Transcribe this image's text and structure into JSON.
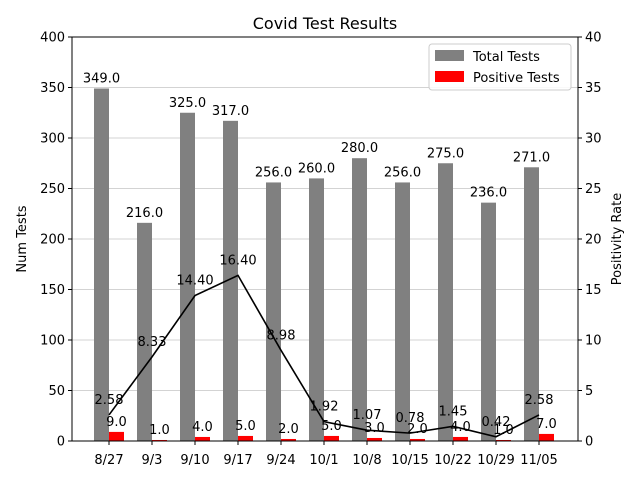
{
  "chart_data": {
    "type": "bar",
    "title": "Covid Test Results",
    "xlabel": "",
    "ylabel": "Num Tests",
    "y2label": "Positivity Rate",
    "ylim": [
      0,
      400
    ],
    "y2lim": [
      0,
      40
    ],
    "yticks": [
      "0",
      "50",
      "100",
      "150",
      "200",
      "250",
      "300",
      "350",
      "400"
    ],
    "y2ticks": [
      "0",
      "5",
      "10",
      "15",
      "20",
      "25",
      "30",
      "35",
      "40"
    ],
    "grid": "horizontal",
    "legend_position": "top-right",
    "categories": [
      "8/27",
      "9/3",
      "9/10",
      "9/17",
      "9/24",
      "10/1",
      "10/8",
      "10/15",
      "10/22",
      "10/29",
      "11/05"
    ],
    "series": [
      {
        "name": "Total Tests",
        "kind": "bar",
        "color": "#808080",
        "values": [
          349,
          216,
          325,
          317,
          256,
          260,
          280,
          256,
          275,
          236,
          271
        ],
        "labels": [
          "349.0",
          "216.0",
          "325.0",
          "317.0",
          "256.0",
          "260.0",
          "280.0",
          "256.0",
          "275.0",
          "236.0",
          "271.0"
        ]
      },
      {
        "name": "Positive Tests",
        "kind": "bar",
        "color": "#ff0000",
        "values": [
          9,
          1,
          4,
          5,
          2,
          5,
          3,
          2,
          4,
          1,
          7
        ],
        "labels": [
          "9.0",
          "1.0",
          "4.0",
          "5.0",
          "2.0",
          "5.0",
          "3.0",
          "2.0",
          "4.0",
          "1.0",
          "7.0"
        ]
      },
      {
        "kind": "line",
        "axis": "right",
        "color": "#000000",
        "values": [
          2.58,
          8.33,
          14.4,
          16.4,
          8.98,
          1.92,
          1.07,
          0.78,
          1.45,
          0.42,
          2.58
        ],
        "labels": [
          "2.58",
          "8.33",
          "14.40",
          "16.40",
          "8.98",
          "1.92",
          "1.07",
          "0.78",
          "1.45",
          "0.42",
          "2.58"
        ]
      }
    ]
  }
}
